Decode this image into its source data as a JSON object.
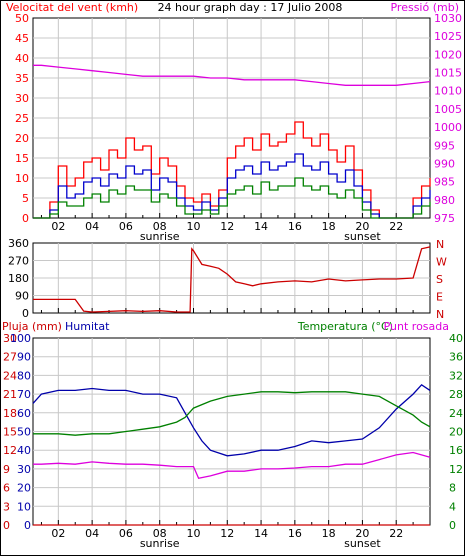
{
  "colors": {
    "wind_gust": "#ff0000",
    "wind_avg": "#0000cc",
    "wind_min": "#008000",
    "pressure": "#dd00dd",
    "direction": "#cc0000",
    "rain": "#cc0000",
    "humidity": "#0000aa",
    "temperature": "#008000",
    "dewpoint": "#dd00dd",
    "grid": "#c8c8c8",
    "frame": "#000000"
  },
  "chart_data": [
    {
      "type": "line",
      "title": "24 hour graph day : 17 Julio 2008",
      "ylabel_left": "Velocitat del vent (kmh)",
      "ylabel_right": "Pressió (mb)",
      "x_ticks": [
        "02",
        "04",
        "06",
        "08",
        "10",
        "12",
        "14",
        "16",
        "18",
        "20",
        "22"
      ],
      "x_tick_hours": [
        2,
        4,
        6,
        8,
        10,
        12,
        14,
        16,
        18,
        20,
        22
      ],
      "x_range": [
        0.5,
        24
      ],
      "markers": [
        {
          "label": "sunrise",
          "hour": 8
        },
        {
          "label": "sunset",
          "hour": 20
        }
      ],
      "ylim_left": [
        0,
        50
      ],
      "yticks_left": [
        0,
        5,
        10,
        15,
        20,
        25,
        30,
        35,
        40,
        45,
        50
      ],
      "ylim_right": [
        975,
        1030
      ],
      "yticks_right": [
        975,
        980,
        985,
        990,
        995,
        1000,
        1005,
        1010,
        1015,
        1020,
        1025,
        1030
      ],
      "series": [
        {
          "key": "wind_gust",
          "axis": "left",
          "x": [
            0.5,
            1,
            1.5,
            2,
            2.5,
            3,
            3.5,
            4,
            4.5,
            5,
            5.5,
            6,
            6.5,
            7,
            7.5,
            8,
            8.5,
            9,
            9.5,
            10,
            10.5,
            11,
            11.5,
            12,
            12.5,
            13,
            13.5,
            14,
            14.5,
            15,
            15.5,
            16,
            16.5,
            17,
            17.5,
            18,
            18.5,
            19,
            19.5,
            20,
            20.5,
            21,
            21.5,
            22,
            22.5,
            23,
            23.5,
            24
          ],
          "values": [
            0,
            0,
            4,
            13,
            8,
            10,
            14,
            15,
            12,
            17,
            15,
            20,
            17,
            18,
            11,
            15,
            13,
            8,
            5,
            4,
            6,
            3,
            7,
            15,
            18,
            20,
            17,
            21,
            18,
            19,
            21,
            24,
            20,
            18,
            21,
            17,
            14,
            18,
            12,
            7,
            2,
            0,
            0,
            0,
            0,
            5,
            8,
            10
          ]
        },
        {
          "key": "wind_avg",
          "axis": "left",
          "x": [
            0.5,
            1,
            1.5,
            2,
            2.5,
            3,
            3.5,
            4,
            4.5,
            5,
            5.5,
            6,
            6.5,
            7,
            7.5,
            8,
            8.5,
            9,
            9.5,
            10,
            10.5,
            11,
            11.5,
            12,
            12.5,
            13,
            13.5,
            14,
            14.5,
            15,
            15.5,
            16,
            16.5,
            17,
            17.5,
            18,
            18.5,
            19,
            19.5,
            20,
            20.5,
            21,
            21.5,
            22,
            22.5,
            23,
            23.5,
            24
          ],
          "values": [
            0,
            0,
            2,
            8,
            5,
            6,
            9,
            10,
            8,
            11,
            10,
            13,
            11,
            12,
            7,
            10,
            9,
            5,
            3,
            2,
            4,
            2,
            5,
            10,
            12,
            13,
            11,
            14,
            12,
            13,
            14,
            16,
            13,
            12,
            14,
            11,
            9,
            12,
            8,
            4,
            1,
            0,
            0,
            0,
            0,
            3,
            5,
            7
          ]
        },
        {
          "key": "wind_min",
          "axis": "left",
          "x": [
            0.5,
            1,
            1.5,
            2,
            2.5,
            3,
            3.5,
            4,
            4.5,
            5,
            5.5,
            6,
            6.5,
            7,
            7.5,
            8,
            8.5,
            9,
            9.5,
            10,
            10.5,
            11,
            11.5,
            12,
            12.5,
            13,
            13.5,
            14,
            14.5,
            15,
            15.5,
            16,
            16.5,
            17,
            17.5,
            18,
            18.5,
            19,
            19.5,
            20,
            20.5,
            21,
            21.5,
            22,
            22.5,
            23,
            23.5,
            24
          ],
          "values": [
            0,
            0,
            1,
            4,
            3,
            3,
            5,
            6,
            4,
            7,
            6,
            8,
            7,
            7,
            4,
            6,
            5,
            3,
            1,
            1,
            2,
            1,
            3,
            6,
            7,
            8,
            6,
            9,
            7,
            8,
            8,
            10,
            8,
            7,
            8,
            6,
            5,
            7,
            5,
            2,
            0,
            0,
            0,
            0,
            0,
            1,
            3,
            4
          ]
        },
        {
          "key": "pressure",
          "axis": "right",
          "x": [
            0.5,
            1,
            2,
            3,
            4,
            5,
            6,
            7,
            8,
            9,
            10,
            11,
            12,
            13,
            14,
            15,
            16,
            17,
            18,
            19,
            20,
            21,
            22,
            23,
            24
          ],
          "values": [
            1017,
            1017,
            1016.5,
            1016,
            1015.5,
            1015,
            1014.5,
            1014,
            1014,
            1014,
            1014,
            1013.5,
            1013.5,
            1013,
            1013,
            1013,
            1013,
            1012.5,
            1012,
            1011.5,
            1011.5,
            1011.5,
            1011.5,
            1012,
            1012.5
          ]
        }
      ]
    },
    {
      "type": "line",
      "ylabel_left": "",
      "yticks_left": [
        0,
        90,
        180,
        270,
        360
      ],
      "ylim": [
        0,
        360
      ],
      "compass_labels": [
        "N",
        "W",
        "S",
        "E",
        "N"
      ],
      "series": [
        {
          "key": "direction",
          "x": [
            0.5,
            1,
            2,
            3,
            3.5,
            4,
            5,
            6,
            7,
            8,
            9,
            9.8,
            9.9,
            10,
            10.5,
            11,
            11.5,
            12,
            12.5,
            13,
            13.5,
            14,
            15,
            16,
            17,
            18,
            19,
            20,
            21,
            22,
            23,
            23.5,
            24
          ],
          "values": [
            70,
            70,
            70,
            70,
            10,
            5,
            8,
            12,
            8,
            12,
            5,
            5,
            330,
            320,
            250,
            240,
            230,
            200,
            160,
            150,
            140,
            150,
            160,
            165,
            160,
            175,
            165,
            170,
            175,
            175,
            180,
            330,
            340
          ]
        }
      ]
    },
    {
      "type": "line",
      "ylabel_left": "Pluja (mm)",
      "ylabel_humidity": "Humitat",
      "ylabel_right": "Temperatura (°C)",
      "ylabel_right2": "Punt rosada",
      "x_ticks": [
        "02",
        "04",
        "06",
        "08",
        "10",
        "12",
        "14",
        "16",
        "18",
        "20",
        "22"
      ],
      "markers": [
        {
          "label": "sunrise",
          "hour": 8
        },
        {
          "label": "sunset",
          "hour": 20
        }
      ],
      "yticks_rain": [
        0,
        3,
        6,
        9,
        12,
        15,
        18,
        21,
        24,
        27,
        30
      ],
      "ylim_rain": [
        0,
        30
      ],
      "yticks_humidity": [
        0,
        10,
        20,
        30,
        40,
        50,
        60,
        70,
        80,
        90,
        100
      ],
      "ylim_humidity": [
        0,
        100
      ],
      "yticks_temp": [
        0,
        4,
        8,
        12,
        16,
        20,
        24,
        28,
        32,
        36,
        40
      ],
      "ylim_temp": [
        0,
        40
      ],
      "series": [
        {
          "key": "humidity",
          "axis": "humidity",
          "x": [
            0.5,
            1,
            2,
            3,
            4,
            5,
            6,
            7,
            8,
            9,
            9.5,
            10,
            10.5,
            11,
            12,
            13,
            14,
            15,
            16,
            17,
            18,
            19,
            20,
            21,
            22,
            23,
            23.5,
            24
          ],
          "values": [
            65,
            70,
            72,
            72,
            73,
            72,
            72,
            70,
            70,
            68,
            60,
            52,
            45,
            40,
            37,
            38,
            40,
            40,
            42,
            45,
            44,
            45,
            46,
            52,
            62,
            70,
            75,
            72
          ]
        },
        {
          "key": "temperature",
          "axis": "temp",
          "x": [
            0.5,
            1,
            2,
            3,
            4,
            5,
            6,
            7,
            8,
            9,
            9.5,
            10,
            11,
            12,
            13,
            14,
            15,
            16,
            17,
            18,
            19,
            20,
            21,
            22,
            23,
            23.5,
            24
          ],
          "values": [
            19.5,
            19.5,
            19.5,
            19.2,
            19.5,
            19.5,
            20,
            20.5,
            21,
            22,
            23,
            25,
            26.5,
            27.5,
            28,
            28.5,
            28.5,
            28.3,
            28.5,
            28.5,
            28.5,
            28,
            27.5,
            25.5,
            23.5,
            22,
            21
          ]
        },
        {
          "key": "dewpoint",
          "axis": "temp",
          "x": [
            0.5,
            1,
            2,
            3,
            4,
            5,
            6,
            7,
            8,
            9,
            10,
            10.3,
            11,
            12,
            13,
            14,
            15,
            16,
            17,
            18,
            19,
            20,
            21,
            22,
            23,
            24
          ],
          "values": [
            13,
            13,
            13.2,
            13,
            13.5,
            13.2,
            13,
            13,
            12.8,
            12.5,
            12.5,
            10,
            10.5,
            11.5,
            11.5,
            12,
            12,
            12.2,
            12.5,
            12.5,
            13,
            13,
            14,
            15,
            15.5,
            14.5
          ]
        },
        {
          "key": "rain",
          "axis": "rain",
          "x": [
            0.5,
            24
          ],
          "values": [
            0,
            0
          ]
        }
      ]
    }
  ]
}
